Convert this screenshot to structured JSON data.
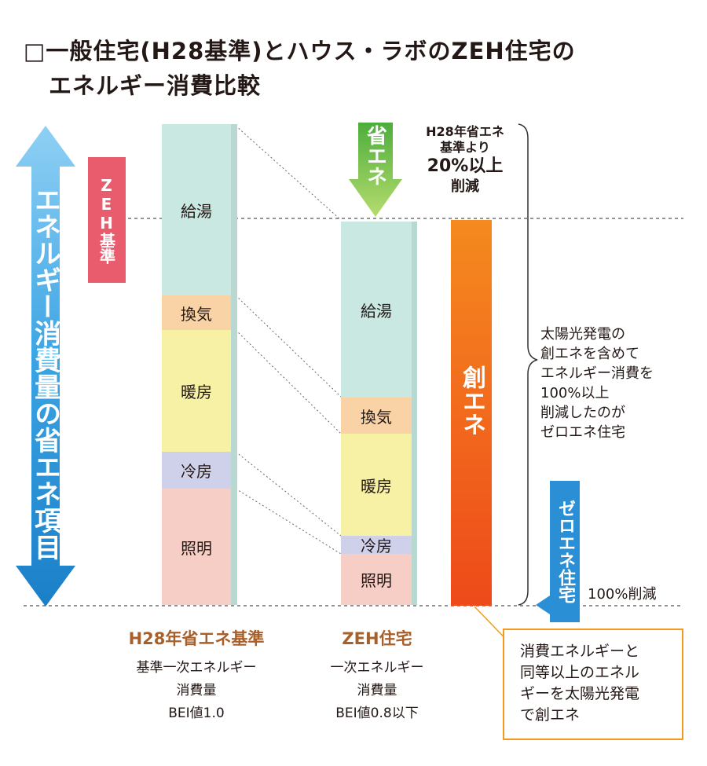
{
  "title": {
    "line1": "□一般住宅(H28基準)とハウス・ラボのZEH住宅の",
    "line2": "エネルギー消費比較"
  },
  "left_arrow_label": "エネルギー消費量の省エネ項目",
  "zeh_kijun_label": "ZEH基準",
  "h28_bar": {
    "segments": [
      "給湯",
      "換気",
      "暖房",
      "冷房",
      "照明"
    ],
    "caption": "H28年省エネ基準",
    "desc_line1": "基準一次エネルギー",
    "desc_line2": "消費量",
    "desc_line3": "BEI値1.0"
  },
  "zeh_bar": {
    "segments": [
      "給湯",
      "換気",
      "暖房",
      "冷房",
      "照明"
    ],
    "caption": "ZEH住宅",
    "desc_line1": "一次エネルギー",
    "desc_line2": "消費量",
    "desc_line3": "BEI値0.8以下"
  },
  "shoene_arrow_label": "省エネ",
  "reduction_note": {
    "line1": "H28年省エネ",
    "line2": "基準より",
    "line3": "20%以上",
    "line4": "削減"
  },
  "souene_bar_label": "創エネ",
  "solar_note": {
    "line1": "太陽光発電の",
    "line2": "創エネを含めて",
    "line3": "エネルギー消費を",
    "line4": "100%以上",
    "line5": "削減したのが",
    "line6": "ゼロエネ住宅"
  },
  "zero_ene_label": "ゼロエネ住宅",
  "hundred_label": "100%削減",
  "orange_box": {
    "line1": "消費エネルギーと",
    "line2": "同等以上のエネル",
    "line3": "ギーを太陽光発電",
    "line4": "で創エネ"
  },
  "colors": {
    "kyuto": "#c9e8e2",
    "kanki": "#f9d2a6",
    "danbo": "#f6f1a4",
    "reibo": "#cfd0ea",
    "shomei": "#f7cec6",
    "accent_blue": "#2b8fd6",
    "accent_green": "#7cc24a",
    "zeh_red": "#e85c6e",
    "souene_orange": "#f26a1b",
    "caption_brown": "#a8602b"
  }
}
